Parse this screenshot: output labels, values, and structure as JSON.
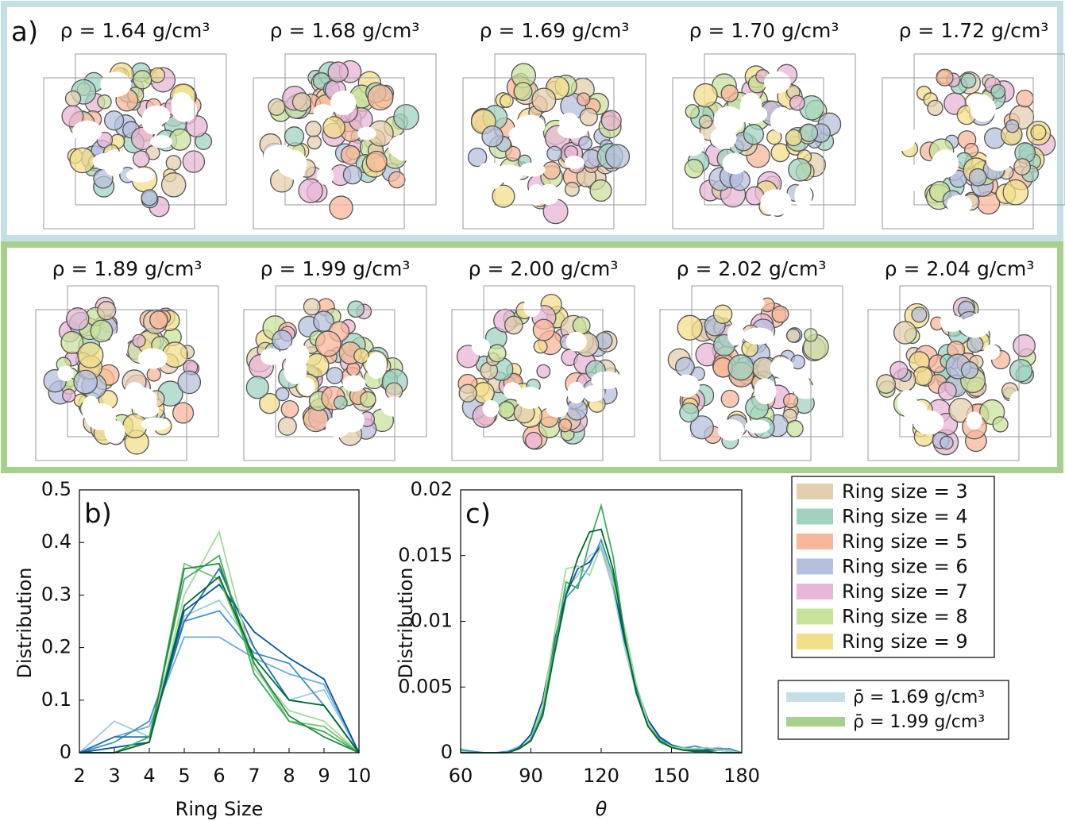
{
  "panel_a": {
    "label": "a)",
    "rows": [
      {
        "color": "#c5dfe6",
        "structures": [
          {
            "label": "ρ = 1.64 g/cm³"
          },
          {
            "label": "ρ = 1.68 g/cm³"
          },
          {
            "label": "ρ = 1.69 g/cm³"
          },
          {
            "label": "ρ = 1.70 g/cm³"
          },
          {
            "label": "ρ = 1.72 g/cm³"
          }
        ]
      },
      {
        "color": "#a8d08d",
        "structures": [
          {
            "label": "ρ = 1.89 g/cm³"
          },
          {
            "label": "ρ = 1.99 g/cm³"
          },
          {
            "label": "ρ = 2.00 g/cm³"
          },
          {
            "label": "ρ = 2.02 g/cm³"
          },
          {
            "label": "ρ = 2.04 g/cm³"
          }
        ]
      }
    ]
  },
  "chart_data": [
    {
      "type": "line",
      "panel_label": "b)",
      "xlabel": "Ring Size",
      "ylabel": "Distribution",
      "x": [
        2,
        3,
        4,
        5,
        6,
        7,
        8,
        9,
        10
      ],
      "xlim": [
        2,
        10
      ],
      "xticks": [
        2,
        3,
        4,
        5,
        6,
        7,
        8,
        9,
        10
      ],
      "ylim": [
        0,
        0.5
      ],
      "yticks": [
        0,
        0.1,
        0.2,
        0.3,
        0.4,
        0.5
      ],
      "series": [
        {
          "color": "#9ecae1",
          "values": [
            0,
            0.06,
            0.03,
            0.26,
            0.29,
            0.2,
            0.1,
            0.12,
            0
          ]
        },
        {
          "color": "#6baed6",
          "values": [
            0,
            0.03,
            0.05,
            0.22,
            0.22,
            0.18,
            0.15,
            0.13,
            0
          ]
        },
        {
          "color": "#4292c6",
          "values": [
            0,
            0.02,
            0.06,
            0.25,
            0.27,
            0.19,
            0.17,
            0.09,
            0
          ]
        },
        {
          "color": "#2171b5",
          "values": [
            0,
            0.03,
            0.03,
            0.25,
            0.35,
            0.2,
            0.1,
            0.09,
            0
          ]
        },
        {
          "color": "#08519c",
          "values": [
            0,
            0.01,
            0.02,
            0.27,
            0.32,
            0.23,
            0.18,
            0.14,
            0
          ]
        },
        {
          "color": "#a1d99b",
          "values": [
            0,
            0,
            0.02,
            0.3,
            0.42,
            0.16,
            0.08,
            0.06,
            0
          ]
        },
        {
          "color": "#74c476",
          "values": [
            0,
            0,
            0.02,
            0.36,
            0.33,
            0.17,
            0.06,
            0.05,
            0
          ]
        },
        {
          "color": "#41ab5d",
          "values": [
            0,
            0,
            0.03,
            0.33,
            0.375,
            0.15,
            0.06,
            0.04,
            0
          ]
        },
        {
          "color": "#238b45",
          "values": [
            0,
            0,
            0.02,
            0.35,
            0.36,
            0.17,
            0.07,
            0.03,
            0
          ]
        },
        {
          "color": "#006d2c",
          "values": [
            0,
            0,
            0.02,
            0.28,
            0.335,
            0.18,
            0.1,
            0.09,
            0
          ]
        }
      ]
    },
    {
      "type": "line",
      "panel_label": "c)",
      "xlabel": "θ",
      "ylabel": "Distribution",
      "x": [
        60,
        65,
        70,
        75,
        80,
        85,
        90,
        95,
        100,
        105,
        110,
        115,
        120,
        125,
        130,
        135,
        140,
        145,
        150,
        155,
        160,
        165,
        170,
        175,
        180
      ],
      "xlim": [
        60,
        180
      ],
      "xticks": [
        60,
        90,
        120,
        150,
        180
      ],
      "ylim": [
        0,
        0.02
      ],
      "yticks": [
        0,
        0.005,
        0.01,
        0.015,
        0.02
      ],
      "series": [
        {
          "color": "#9ecae1",
          "values": [
            0.0003,
            0.0001,
            0,
            0,
            0.0001,
            0.0005,
            0.0012,
            0.0035,
            0.008,
            0.0125,
            0.0135,
            0.015,
            0.0155,
            0.0125,
            0.008,
            0.0045,
            0.0022,
            0.001,
            0.0006,
            0.0004,
            0.0005,
            0.0003,
            0.0004,
            0.0002,
            0
          ]
        },
        {
          "color": "#4292c6",
          "values": [
            0.0002,
            0.0001,
            0,
            0,
            0.0001,
            0.0003,
            0.001,
            0.0032,
            0.0075,
            0.0118,
            0.0128,
            0.0142,
            0.0162,
            0.0135,
            0.0088,
            0.0048,
            0.0024,
            0.0011,
            0.0005,
            0.0003,
            0.0005,
            0.0003,
            0.0003,
            0.0003,
            0
          ]
        },
        {
          "color": "#08519c",
          "values": [
            0.0001,
            0,
            0,
            0,
            0,
            0.0004,
            0.0014,
            0.004,
            0.0085,
            0.012,
            0.014,
            0.0145,
            0.0158,
            0.013,
            0.0085,
            0.005,
            0.0025,
            0.0012,
            0.0006,
            0.0003,
            0.0002,
            0.0002,
            0.0002,
            0.0001,
            0
          ]
        },
        {
          "color": "#a1d99b",
          "values": [
            0.0001,
            0,
            0,
            0,
            0,
            0.0003,
            0.0009,
            0.0035,
            0.009,
            0.014,
            0.0142,
            0.0135,
            0.0158,
            0.013,
            0.0095,
            0.0052,
            0.0023,
            0.0009,
            0.0005,
            0.0003,
            0.0003,
            0.0004,
            0.0002,
            0.0001,
            0
          ]
        },
        {
          "color": "#41ab5d",
          "values": [
            0,
            0,
            0,
            0,
            0,
            0.0003,
            0.001,
            0.003,
            0.008,
            0.013,
            0.0125,
            0.016,
            0.0188,
            0.015,
            0.009,
            0.0045,
            0.002,
            0.0008,
            0.0004,
            0.0002,
            0.0001,
            0.0001,
            0,
            0,
            0
          ]
        },
        {
          "color": "#006d2c",
          "values": [
            0,
            0,
            0,
            0,
            0,
            0.0003,
            0.0009,
            0.0028,
            0.0075,
            0.012,
            0.0148,
            0.0168,
            0.017,
            0.014,
            0.0088,
            0.0045,
            0.002,
            0.0009,
            0.0004,
            0.0002,
            0.0001,
            0.0001,
            0,
            0,
            0
          ]
        }
      ]
    }
  ],
  "ring_legend": {
    "items": [
      {
        "label": "Ring size = 3",
        "color": "#e3cfae"
      },
      {
        "label": "Ring size = 4",
        "color": "#9fd3c0"
      },
      {
        "label": "Ring size = 5",
        "color": "#f9b79a"
      },
      {
        "label": "Ring size = 6",
        "color": "#b6c0de"
      },
      {
        "label": "Ring size = 7",
        "color": "#e8b6d6"
      },
      {
        "label": "Ring size = 8",
        "color": "#c9e29b"
      },
      {
        "label": "Ring size = 9",
        "color": "#f3de89"
      }
    ]
  },
  "density_legend": {
    "items": [
      {
        "label": "ρ̄ = 1.69 g/cm³",
        "color": "#c5dfe6"
      },
      {
        "label": "ρ̄ = 1.99 g/cm³",
        "color": "#a8d08d"
      }
    ]
  }
}
